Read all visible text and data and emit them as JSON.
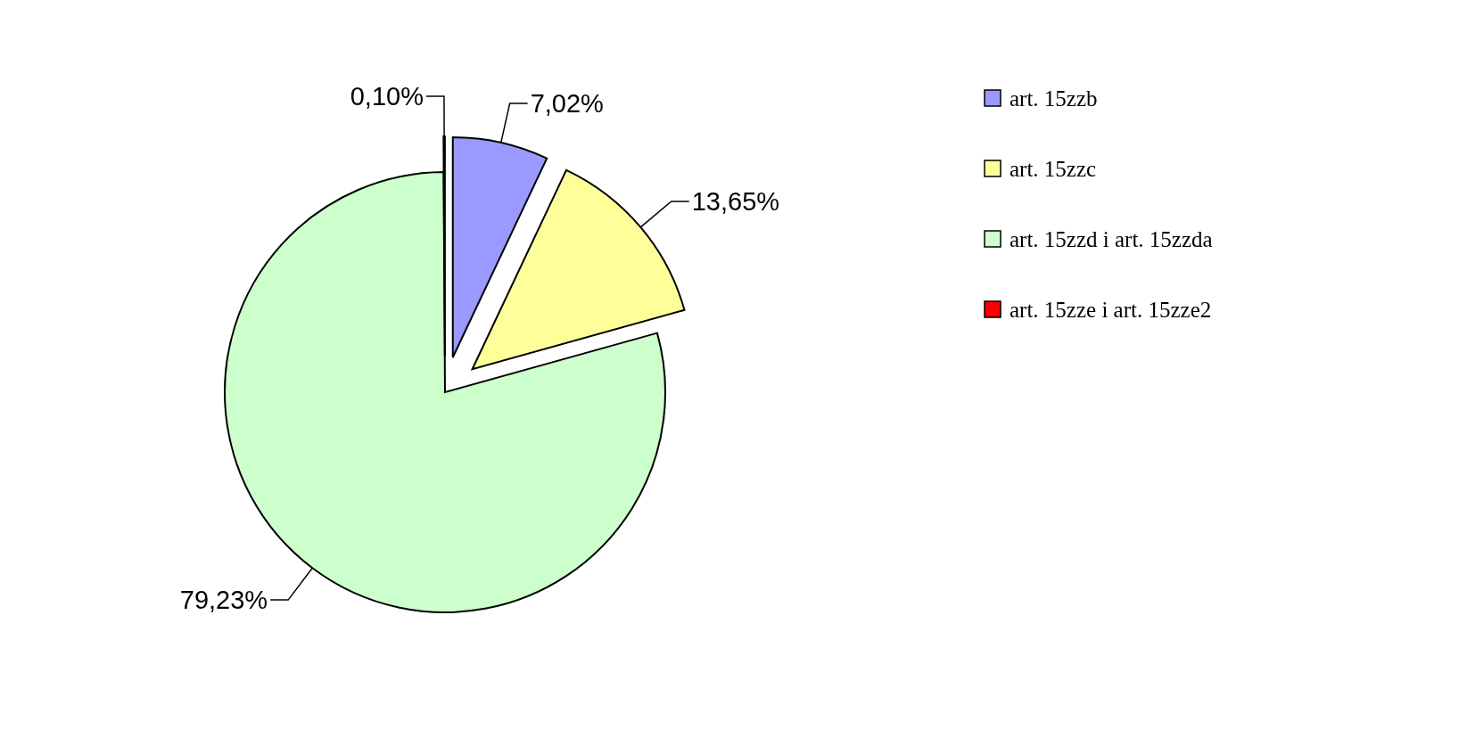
{
  "chart_data": {
    "type": "pie",
    "categories": [
      "art. 15zzb",
      "art. 15zzc",
      "art. 15zzd  i art. 15zzda",
      "art. 15zze  i art. 15zze2"
    ],
    "values": [
      7.02,
      13.65,
      79.23,
      0.1
    ],
    "colors": [
      "#9999ff",
      "#ffff99",
      "#ccffcc",
      "#ff0000"
    ],
    "value_labels": [
      "7,02%",
      "13,65%",
      "79,23%",
      "0,10%"
    ],
    "legend": "right"
  }
}
